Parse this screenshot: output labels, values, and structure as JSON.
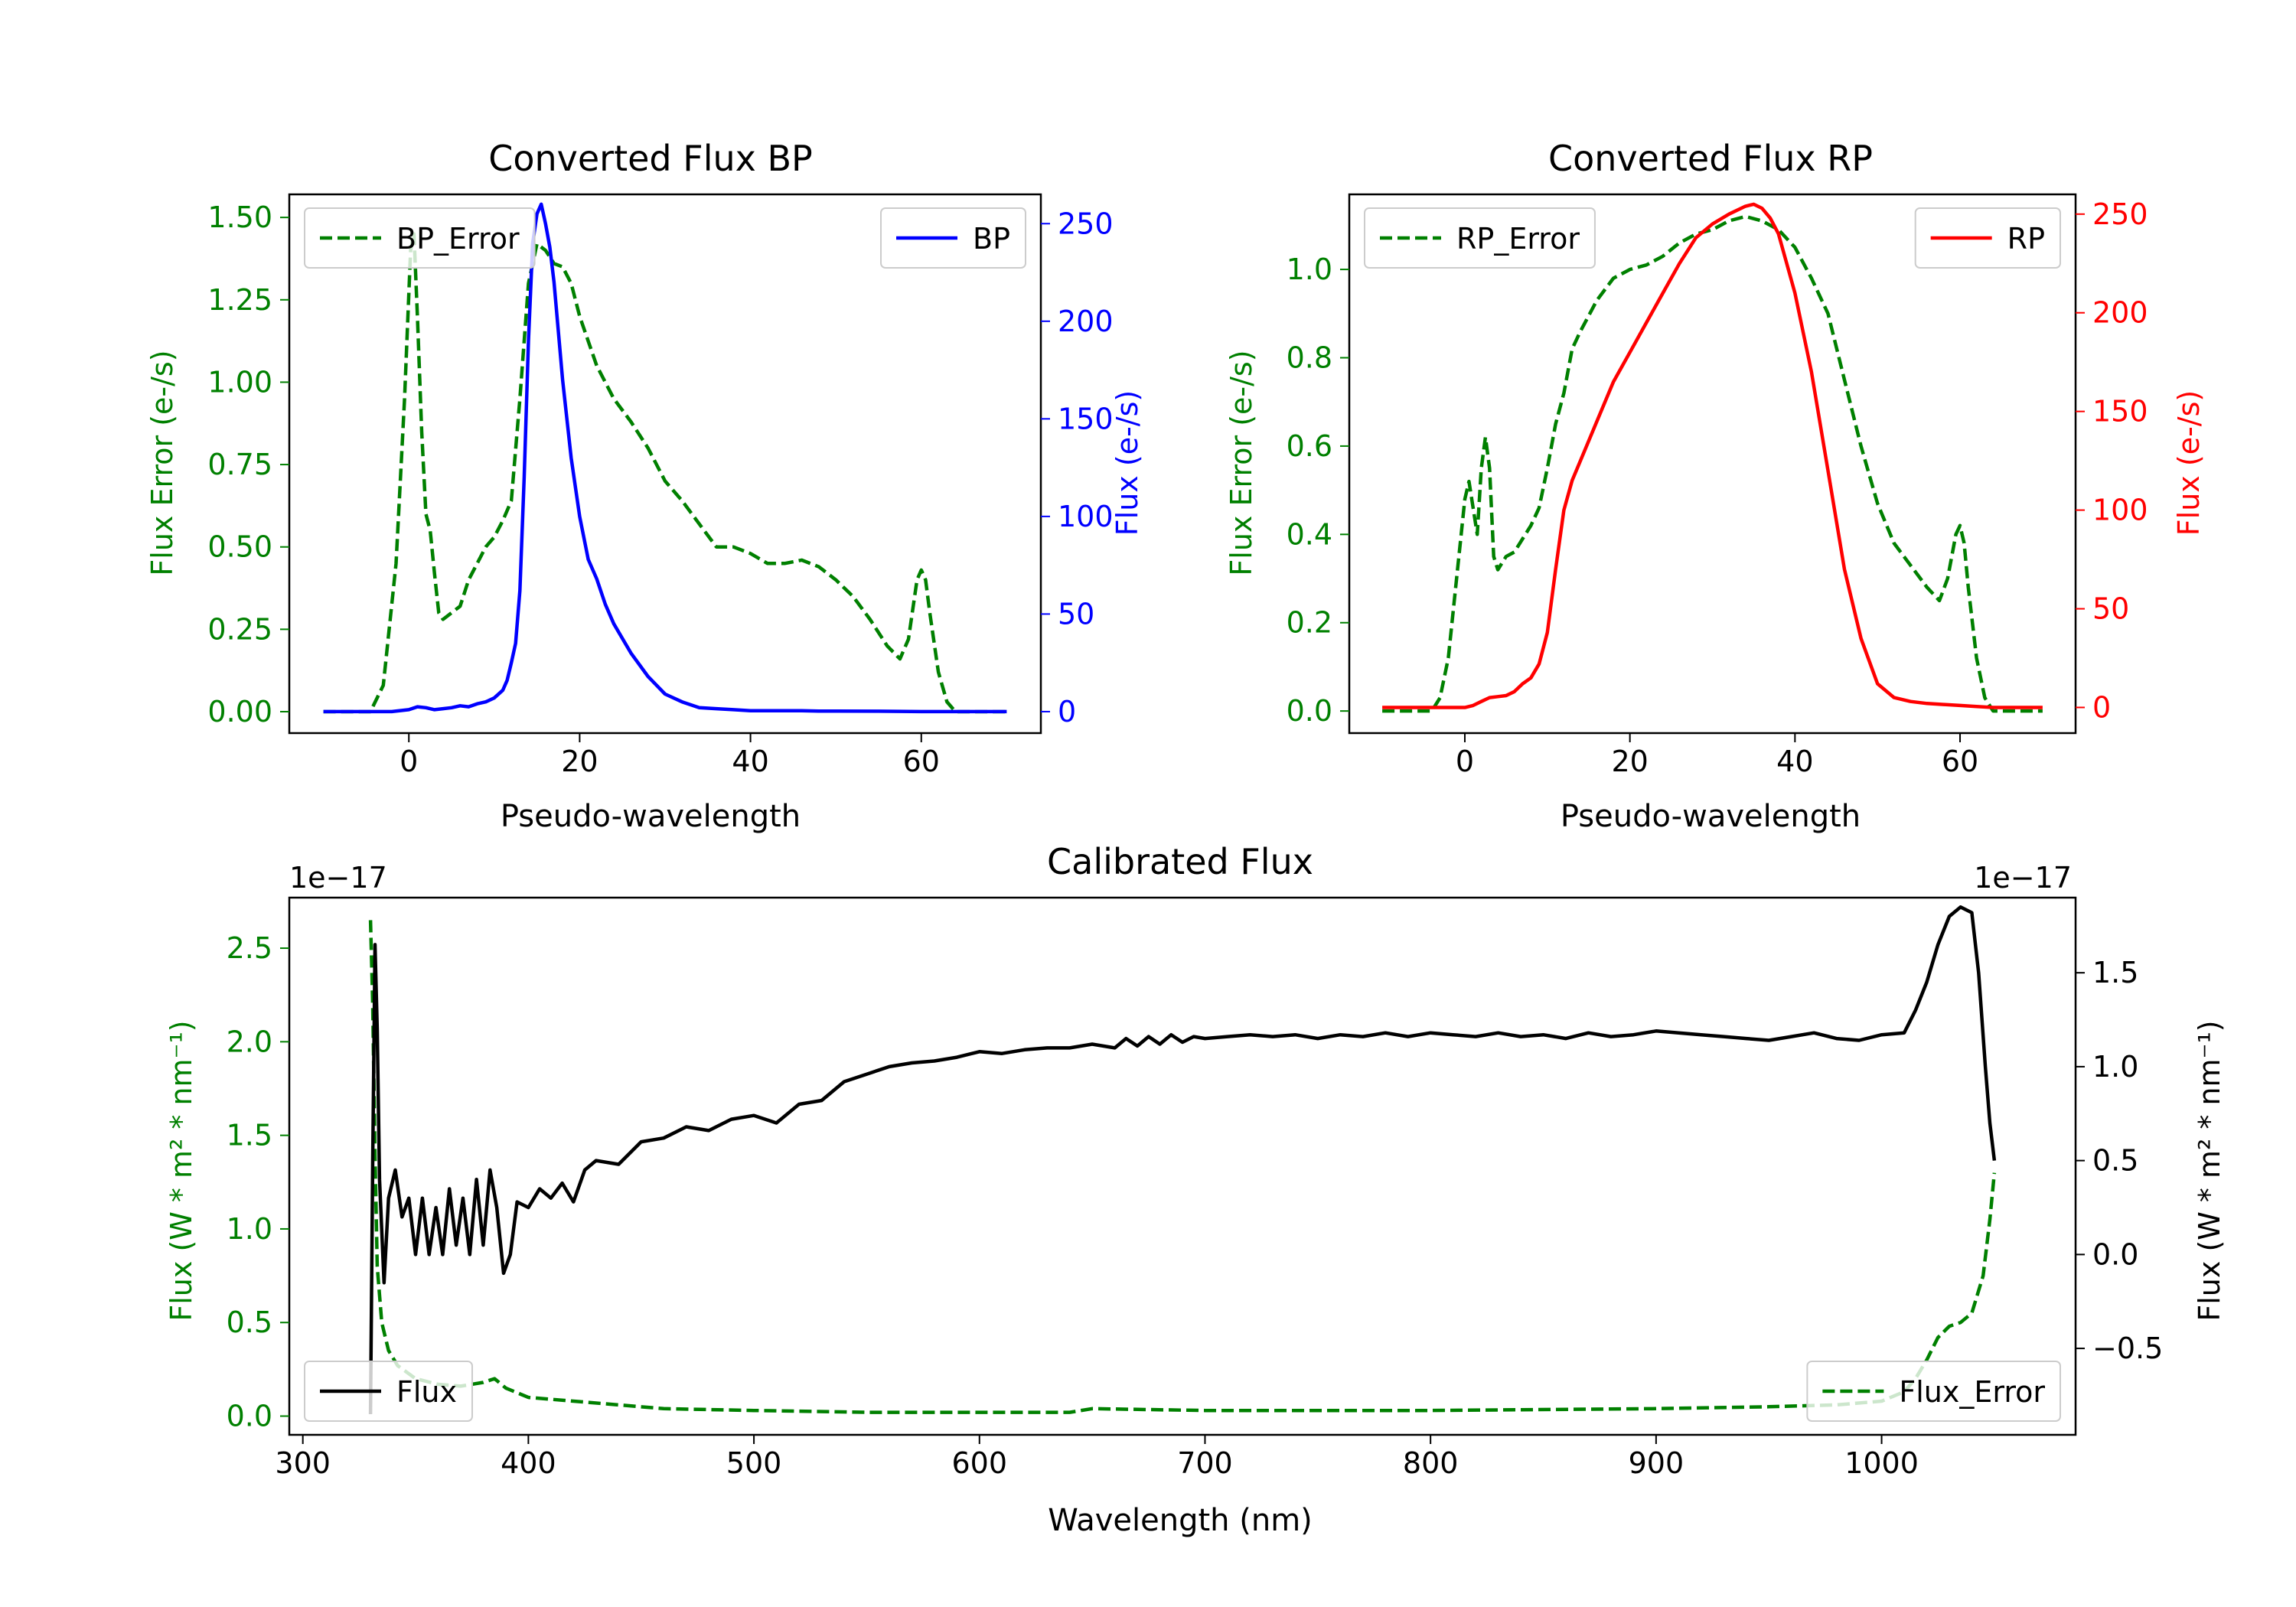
{
  "chart_data": [
    {
      "id": "bp",
      "type": "line",
      "title": "Converted Flux BP",
      "xlabel": "Pseudo-wavelength",
      "ylabel_left": "Flux Error (e-/s)",
      "ylabel_right": "Flux (e-/s)",
      "xlim": [
        -14,
        74
      ],
      "ylim_left": [
        -0.065,
        1.57
      ],
      "ylim_right": [
        -11,
        265
      ],
      "xticks": [
        0,
        20,
        40,
        60
      ],
      "yticks_left": [
        0.0,
        0.25,
        0.5,
        0.75,
        1.0,
        1.25,
        1.5
      ],
      "ytick_labels_left": [
        "0.00",
        "0.25",
        "0.50",
        "0.75",
        "1.00",
        "1.25",
        "1.50"
      ],
      "yticks_right": [
        0,
        50,
        100,
        150,
        200,
        250
      ],
      "legend_left": {
        "label": "BP_Error",
        "position": "upper left"
      },
      "legend_right": {
        "label": "BP",
        "position": "upper right"
      },
      "colors": {
        "error": "#008000",
        "flux": "#0000ff",
        "left_axis": "#008000",
        "right_axis": "#0000ff"
      },
      "series": [
        {
          "name": "BP_Error",
          "axis": "left",
          "style": "dashed",
          "x": [
            -10,
            -4.5,
            -3,
            -1.5,
            -0.5,
            0.2,
            0.6,
            1,
            1.5,
            2,
            2.5,
            3,
            3.5,
            4,
            5,
            6,
            7,
            8,
            9,
            10,
            11,
            12,
            13,
            14,
            15,
            16,
            17,
            18,
            19,
            20,
            22,
            24,
            26,
            28,
            30,
            32,
            34,
            36,
            38,
            40,
            42,
            44,
            46,
            48,
            50,
            52,
            54,
            56,
            57.5,
            58.5,
            59.5,
            60,
            60.5,
            61,
            62,
            63,
            64,
            66,
            70
          ],
          "y": [
            0,
            0,
            0.08,
            0.45,
            0.95,
            1.4,
            1.45,
            1.2,
            0.85,
            0.6,
            0.55,
            0.42,
            0.3,
            0.28,
            0.3,
            0.32,
            0.4,
            0.45,
            0.5,
            0.53,
            0.58,
            0.64,
            0.95,
            1.3,
            1.42,
            1.4,
            1.36,
            1.35,
            1.3,
            1.2,
            1.05,
            0.95,
            0.88,
            0.8,
            0.7,
            0.64,
            0.57,
            0.5,
            0.5,
            0.48,
            0.45,
            0.45,
            0.46,
            0.44,
            0.4,
            0.35,
            0.28,
            0.2,
            0.16,
            0.22,
            0.4,
            0.43,
            0.4,
            0.3,
            0.12,
            0.03,
            0,
            0,
            0
          ]
        },
        {
          "name": "BP",
          "axis": "right",
          "style": "solid",
          "x": [
            -10,
            -2,
            0,
            1,
            2,
            3,
            4,
            5,
            6,
            7,
            8,
            9,
            10,
            11,
            11.5,
            12,
            12.5,
            13,
            13.5,
            14,
            14.5,
            15,
            15.5,
            16,
            16.5,
            17,
            17.5,
            18,
            19,
            20,
            21,
            22,
            23,
            24,
            26,
            28,
            30,
            32,
            34,
            36,
            38,
            40,
            42,
            44,
            46,
            48,
            50,
            55,
            60,
            65,
            70
          ],
          "y": [
            0,
            0,
            1,
            2.5,
            2,
            1,
            1.5,
            2,
            3,
            2.5,
            4,
            5,
            7,
            11,
            16,
            25,
            35,
            62,
            120,
            190,
            240,
            255,
            260,
            250,
            238,
            220,
            195,
            170,
            130,
            100,
            78,
            68,
            55,
            45,
            30,
            18,
            9,
            5,
            2,
            1.5,
            1,
            0.5,
            0.5,
            0.5,
            0.5,
            0.3,
            0.3,
            0.2,
            0,
            0,
            0
          ]
        }
      ]
    },
    {
      "id": "rp",
      "type": "line",
      "title": "Converted Flux RP",
      "xlabel": "Pseudo-wavelength",
      "ylabel_left": "Flux Error (e-/s)",
      "ylabel_right": "Flux (e-/s)",
      "xlim": [
        -14,
        74
      ],
      "ylim_left": [
        -0.05,
        1.17
      ],
      "ylim_right": [
        -13,
        260
      ],
      "xticks": [
        0,
        20,
        40,
        60
      ],
      "yticks_left": [
        0.0,
        0.2,
        0.4,
        0.6,
        0.8,
        1.0
      ],
      "ytick_labels_left": [
        "0.0",
        "0.2",
        "0.4",
        "0.6",
        "0.8",
        "1.0"
      ],
      "yticks_right": [
        0,
        50,
        100,
        150,
        200,
        250
      ],
      "legend_left": {
        "label": "RP_Error",
        "position": "upper left"
      },
      "legend_right": {
        "label": "RP",
        "position": "upper right"
      },
      "colors": {
        "error": "#008000",
        "flux": "#ff0000",
        "left_axis": "#008000",
        "right_axis": "#ff0000"
      },
      "series": [
        {
          "name": "RP_Error",
          "axis": "left",
          "style": "dashed",
          "x": [
            -10,
            -4,
            -3,
            -2,
            -1,
            0,
            0.5,
            1,
            1.5,
            2,
            2.5,
            3,
            3.5,
            4,
            5,
            6,
            7,
            8,
            9,
            10,
            11,
            12,
            13,
            14,
            16,
            18,
            20,
            22,
            24,
            26,
            28,
            30,
            32,
            34,
            36,
            38,
            40,
            42,
            44,
            46,
            48,
            50,
            52,
            54,
            56,
            57.5,
            58.5,
            59.5,
            60,
            60.5,
            61,
            62,
            63,
            64,
            66,
            70
          ],
          "y": [
            0,
            0,
            0.03,
            0.12,
            0.3,
            0.48,
            0.52,
            0.46,
            0.4,
            0.55,
            0.62,
            0.55,
            0.35,
            0.32,
            0.35,
            0.36,
            0.39,
            0.42,
            0.46,
            0.55,
            0.65,
            0.72,
            0.82,
            0.86,
            0.93,
            0.98,
            1.0,
            1.01,
            1.03,
            1.06,
            1.08,
            1.09,
            1.11,
            1.12,
            1.11,
            1.09,
            1.05,
            0.98,
            0.9,
            0.75,
            0.6,
            0.47,
            0.38,
            0.33,
            0.28,
            0.25,
            0.3,
            0.4,
            0.42,
            0.38,
            0.28,
            0.12,
            0.03,
            0,
            0,
            0
          ]
        },
        {
          "name": "RP",
          "axis": "right",
          "style": "solid",
          "x": [
            -10,
            -2,
            0,
            1,
            2,
            3,
            4,
            5,
            6,
            7,
            8,
            9,
            10,
            11,
            12,
            13,
            14,
            16,
            18,
            20,
            22,
            24,
            26,
            28,
            30,
            32,
            34,
            35,
            36,
            37,
            38,
            40,
            42,
            44,
            46,
            48,
            50,
            52,
            54,
            56,
            58,
            60,
            62,
            64,
            66,
            70
          ],
          "y": [
            0,
            0,
            0,
            1,
            3,
            5,
            5.5,
            6,
            8,
            12,
            15,
            22,
            38,
            70,
            100,
            115,
            125,
            145,
            165,
            180,
            195,
            210,
            225,
            238,
            245,
            250,
            254,
            255,
            253,
            248,
            240,
            210,
            170,
            120,
            70,
            35,
            12,
            5,
            3,
            2,
            1.5,
            1,
            0.5,
            0,
            0,
            0
          ]
        }
      ]
    },
    {
      "id": "cal",
      "type": "line",
      "title": "Calibrated Flux",
      "xlabel": "Wavelength (nm)",
      "ylabel_left": "Flux (W * m² * nm⁻¹)",
      "ylabel_right": "Flux (W * m² * nm⁻¹)",
      "offset_left": "1e−17",
      "offset_right": "1e−17",
      "xlim": [
        294,
        1086
      ],
      "ylim_left": [
        -0.1,
        2.77
      ],
      "ylim_right": [
        -0.96,
        1.9
      ],
      "xticks": [
        300,
        400,
        500,
        600,
        700,
        800,
        900,
        1000
      ],
      "yticks_left": [
        0.0,
        0.5,
        1.0,
        1.5,
        2.0,
        2.5
      ],
      "ytick_labels_left": [
        "0.0",
        "0.5",
        "1.0",
        "1.5",
        "2.0",
        "2.5"
      ],
      "yticks_right": [
        -0.5,
        0.0,
        0.5,
        1.0,
        1.5
      ],
      "ytick_labels_right": [
        "−0.5",
        "0.0",
        "0.5",
        "1.0",
        "1.5"
      ],
      "legend_left": {
        "label": "Flux",
        "position": "lower left"
      },
      "legend_right": {
        "label": "Flux_Error",
        "position": "lower right"
      },
      "colors": {
        "error": "#008000",
        "flux": "#000000",
        "left_axis": "#008000",
        "right_axis": "#000000"
      },
      "series": [
        {
          "name": "Flux_Error",
          "axis": "left",
          "style": "dashed",
          "x": [
            330,
            331,
            332,
            333,
            335,
            338,
            342,
            350,
            360,
            370,
            380,
            385,
            390,
            400,
            420,
            440,
            460,
            500,
            550,
            600,
            640,
            650,
            700,
            800,
            900,
            950,
            980,
            1000,
            1010,
            1015,
            1020,
            1025,
            1030,
            1035,
            1040,
            1045,
            1048,
            1050
          ],
          "y": [
            2.65,
            2.2,
            1.4,
            0.8,
            0.5,
            0.35,
            0.27,
            0.2,
            0.17,
            0.16,
            0.18,
            0.2,
            0.15,
            0.1,
            0.08,
            0.06,
            0.04,
            0.03,
            0.02,
            0.02,
            0.02,
            0.04,
            0.03,
            0.03,
            0.04,
            0.05,
            0.06,
            0.08,
            0.13,
            0.2,
            0.3,
            0.42,
            0.48,
            0.5,
            0.55,
            0.75,
            1.05,
            1.3
          ]
        },
        {
          "name": "Flux",
          "axis": "right",
          "style": "solid",
          "x": [
            330,
            331,
            332,
            333,
            334,
            336,
            338,
            341,
            344,
            347,
            350,
            353,
            356,
            359,
            362,
            365,
            368,
            371,
            374,
            377,
            380,
            383,
            386,
            389,
            392,
            395,
            400,
            405,
            410,
            415,
            420,
            425,
            430,
            440,
            450,
            460,
            470,
            480,
            490,
            500,
            510,
            520,
            530,
            540,
            550,
            560,
            570,
            580,
            590,
            600,
            610,
            620,
            630,
            640,
            650,
            660,
            665,
            670,
            675,
            680,
            685,
            690,
            695,
            700,
            710,
            720,
            730,
            740,
            750,
            760,
            770,
            780,
            790,
            800,
            810,
            820,
            830,
            840,
            850,
            860,
            870,
            880,
            890,
            900,
            910,
            920,
            930,
            940,
            950,
            960,
            970,
            980,
            990,
            1000,
            1010,
            1015,
            1020,
            1025,
            1030,
            1035,
            1040,
            1043,
            1046,
            1048,
            1050
          ],
          "y": [
            -0.85,
            0.5,
            1.65,
            1.2,
            0.4,
            -0.15,
            0.3,
            0.45,
            0.2,
            0.3,
            0.0,
            0.3,
            0.0,
            0.25,
            0.0,
            0.35,
            0.05,
            0.3,
            0.0,
            0.4,
            0.05,
            0.45,
            0.25,
            -0.1,
            0.0,
            0.28,
            0.25,
            0.35,
            0.3,
            0.38,
            0.28,
            0.45,
            0.5,
            0.48,
            0.6,
            0.62,
            0.68,
            0.66,
            0.72,
            0.74,
            0.7,
            0.8,
            0.82,
            0.92,
            0.96,
            1.0,
            1.02,
            1.03,
            1.05,
            1.08,
            1.07,
            1.09,
            1.1,
            1.1,
            1.12,
            1.1,
            1.15,
            1.11,
            1.16,
            1.12,
            1.17,
            1.13,
            1.16,
            1.15,
            1.16,
            1.17,
            1.16,
            1.17,
            1.15,
            1.17,
            1.16,
            1.18,
            1.16,
            1.18,
            1.17,
            1.16,
            1.18,
            1.16,
            1.17,
            1.15,
            1.18,
            1.16,
            1.17,
            1.19,
            1.18,
            1.17,
            1.16,
            1.15,
            1.14,
            1.16,
            1.18,
            1.15,
            1.14,
            1.17,
            1.18,
            1.3,
            1.45,
            1.65,
            1.8,
            1.85,
            1.82,
            1.5,
            1.0,
            0.7,
            0.5
          ]
        }
      ]
    }
  ]
}
